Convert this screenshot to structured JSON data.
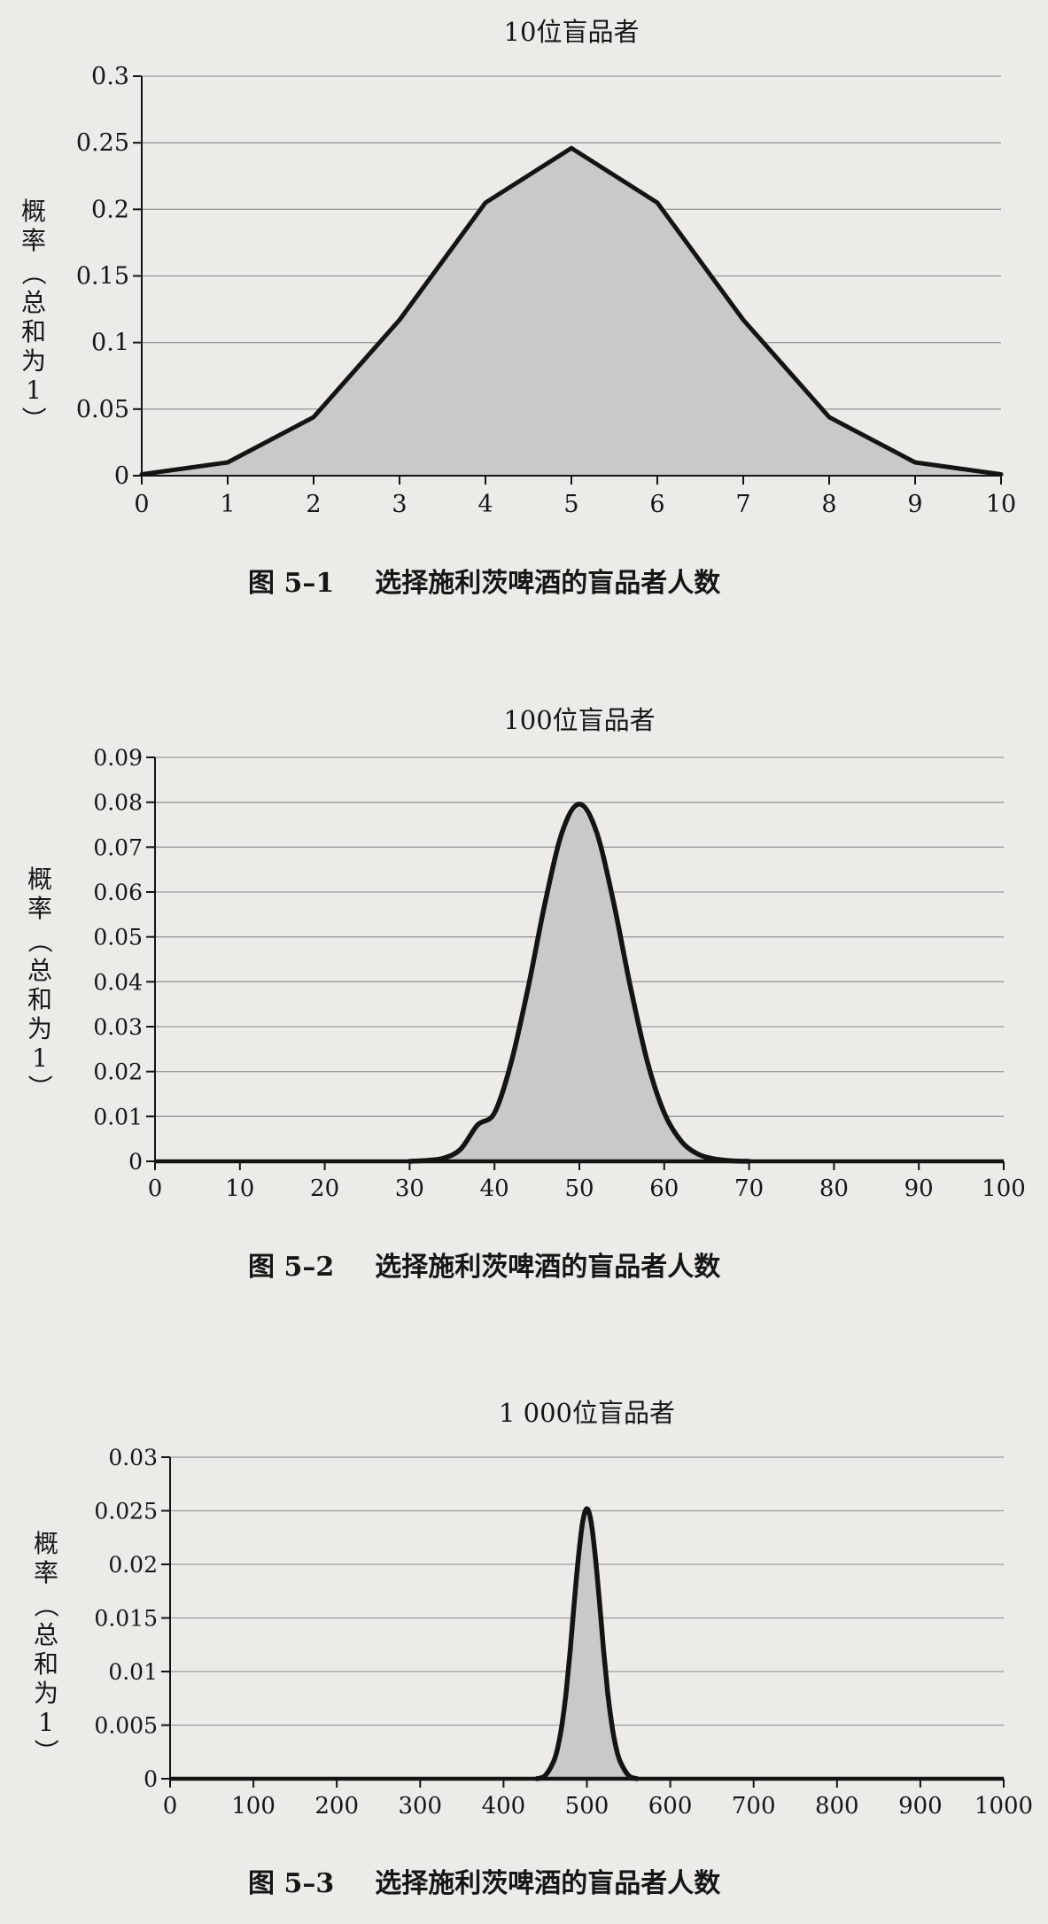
{
  "colors": {
    "page": "#ecebe7",
    "curve": "#141414",
    "fill": "#c9c9c9",
    "grid": "#9a9a9a"
  },
  "chart_data": [
    {
      "type": "area",
      "title": "10位盲品者",
      "ylabel_chars": [
        "概",
        "率",
        "（",
        "总",
        "和",
        "为",
        "1",
        "）"
      ],
      "caption": {
        "label": "图 5–1",
        "text": "选择施利茨啤酒的盲品者人数"
      },
      "xlim": [
        0,
        10
      ],
      "ylim": [
        0,
        0.3
      ],
      "xticks": [
        0,
        1,
        2,
        3,
        4,
        5,
        6,
        7,
        8,
        9,
        10
      ],
      "yticks": [
        0,
        0.05,
        0.1,
        0.15,
        0.2,
        0.25,
        0.3
      ],
      "ytick_labels": [
        "0",
        "0.05",
        "0.1",
        "0.15",
        "0.2",
        "0.25",
        "0.3"
      ],
      "grid": "horizontal",
      "series": [
        {
          "x": [
            0,
            1,
            2,
            3,
            4,
            5,
            6,
            7,
            8,
            9,
            10
          ],
          "y": [
            0.001,
            0.01,
            0.044,
            0.117,
            0.205,
            0.246,
            0.205,
            0.117,
            0.044,
            0.01,
            0.001
          ]
        }
      ]
    },
    {
      "type": "area",
      "title": "100位盲品者",
      "ylabel_chars": [
        "概",
        "率",
        "（",
        "总",
        "和",
        "为",
        "1",
        "）"
      ],
      "caption": {
        "label": "图 5–2",
        "text": "选择施利茨啤酒的盲品者人数"
      },
      "xlim": [
        0,
        100
      ],
      "ylim": [
        0,
        0.09
      ],
      "xticks": [
        0,
        10,
        20,
        30,
        40,
        50,
        60,
        70,
        80,
        90,
        100
      ],
      "yticks": [
        0,
        0.01,
        0.02,
        0.03,
        0.04,
        0.05,
        0.06,
        0.07,
        0.08,
        0.09
      ],
      "ytick_labels": [
        "0",
        "0.01",
        "0.02",
        "0.03",
        "0.04",
        "0.05",
        "0.06",
        "0.07",
        "0.08",
        "0.09"
      ],
      "grid": "horizontal",
      "series": [
        {
          "x": [
            30,
            32,
            34,
            36,
            38,
            40,
            42,
            44,
            46,
            48,
            50,
            52,
            54,
            56,
            58,
            60,
            62,
            64,
            66,
            68,
            70
          ],
          "y": [
            0.0,
            0.0002,
            0.0007,
            0.0027,
            0.0081,
            0.0108,
            0.0223,
            0.039,
            0.058,
            0.0735,
            0.0796,
            0.0735,
            0.058,
            0.039,
            0.0223,
            0.0108,
            0.0045,
            0.0016,
            0.0005,
            0.0001,
            0.0
          ]
        }
      ]
    },
    {
      "type": "area",
      "title": "1 000位盲品者",
      "ylabel_chars": [
        "概",
        "率",
        "（",
        "总",
        "和",
        "为",
        "1",
        "）"
      ],
      "caption": {
        "label": "图 5–3",
        "text": "选择施利茨啤酒的盲品者人数"
      },
      "xlim": [
        0,
        1000
      ],
      "ylim": [
        0,
        0.03
      ],
      "xticks": [
        0,
        100,
        200,
        300,
        400,
        500,
        600,
        700,
        800,
        900,
        1000
      ],
      "yticks": [
        0,
        0.005,
        0.01,
        0.015,
        0.02,
        0.025,
        0.03
      ],
      "ytick_labels": [
        "0",
        "0.005",
        "0.01",
        "0.015",
        "0.02",
        "0.025",
        "0.03"
      ],
      "grid": "horizontal",
      "series": [
        {
          "x": [
            440,
            450,
            460,
            465,
            470,
            475,
            480,
            485,
            490,
            495,
            500,
            505,
            510,
            515,
            520,
            525,
            530,
            535,
            540,
            550,
            560
          ],
          "y": [
            0.0,
            0.0003,
            0.0016,
            0.0029,
            0.005,
            0.008,
            0.012,
            0.0166,
            0.0208,
            0.024,
            0.0252,
            0.024,
            0.0208,
            0.0166,
            0.012,
            0.008,
            0.005,
            0.0029,
            0.0016,
            0.0003,
            0.0
          ]
        }
      ]
    }
  ]
}
